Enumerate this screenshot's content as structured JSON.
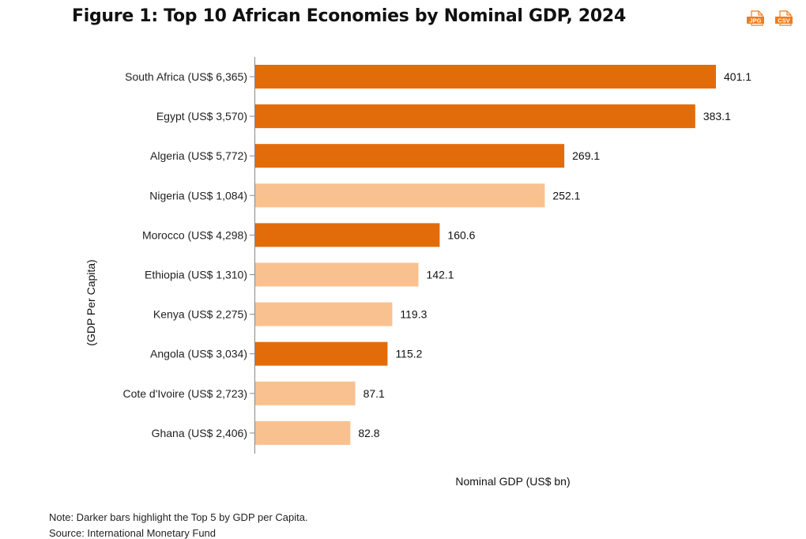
{
  "title": "Figure 1: Top 10 African Economies by Nominal GDP, 2024",
  "downloads": [
    {
      "label": "JPG",
      "icon": "jpg-file-icon"
    },
    {
      "label": "CSV",
      "icon": "csv-file-icon"
    }
  ],
  "colors": {
    "top5_gdp_per_capita": "#e36c0a",
    "other": "#f9c190",
    "accent": "#f07d1e"
  },
  "chart_data": {
    "type": "bar",
    "orientation": "horizontal",
    "title": "Figure 1: Top 10 African Economies by Nominal GDP, 2024",
    "xlabel": "Nominal GDP (US$ bn)",
    "ylabel": "(GDP Per Capita)",
    "categories": [
      "South Africa (US$ 6,365)",
      "Egypt (US$ 3,570)",
      "Algeria (US$ 5,772)",
      "Nigeria (US$ 1,084)",
      "Morocco (US$ 4,298)",
      "Ethiopia (US$ 1,310)",
      "Kenya (US$ 2,275)",
      "Angola (US$ 3,034)",
      "Cote d'Ivoire (US$ 2,723)",
      "Ghana (US$ 2,406)"
    ],
    "values": [
      401.1,
      383.1,
      269.1,
      252.1,
      160.6,
      142.1,
      119.3,
      115.2,
      87.1,
      82.8
    ],
    "highlighted": [
      true,
      true,
      true,
      false,
      true,
      false,
      false,
      true,
      false,
      false
    ],
    "xlim": [
      0,
      401.1
    ],
    "grid": false
  },
  "notes": {
    "note": "Note: Darker bars highlight the Top 5 by GDP per Capita.",
    "source": "Source: International Monetary Fund"
  }
}
